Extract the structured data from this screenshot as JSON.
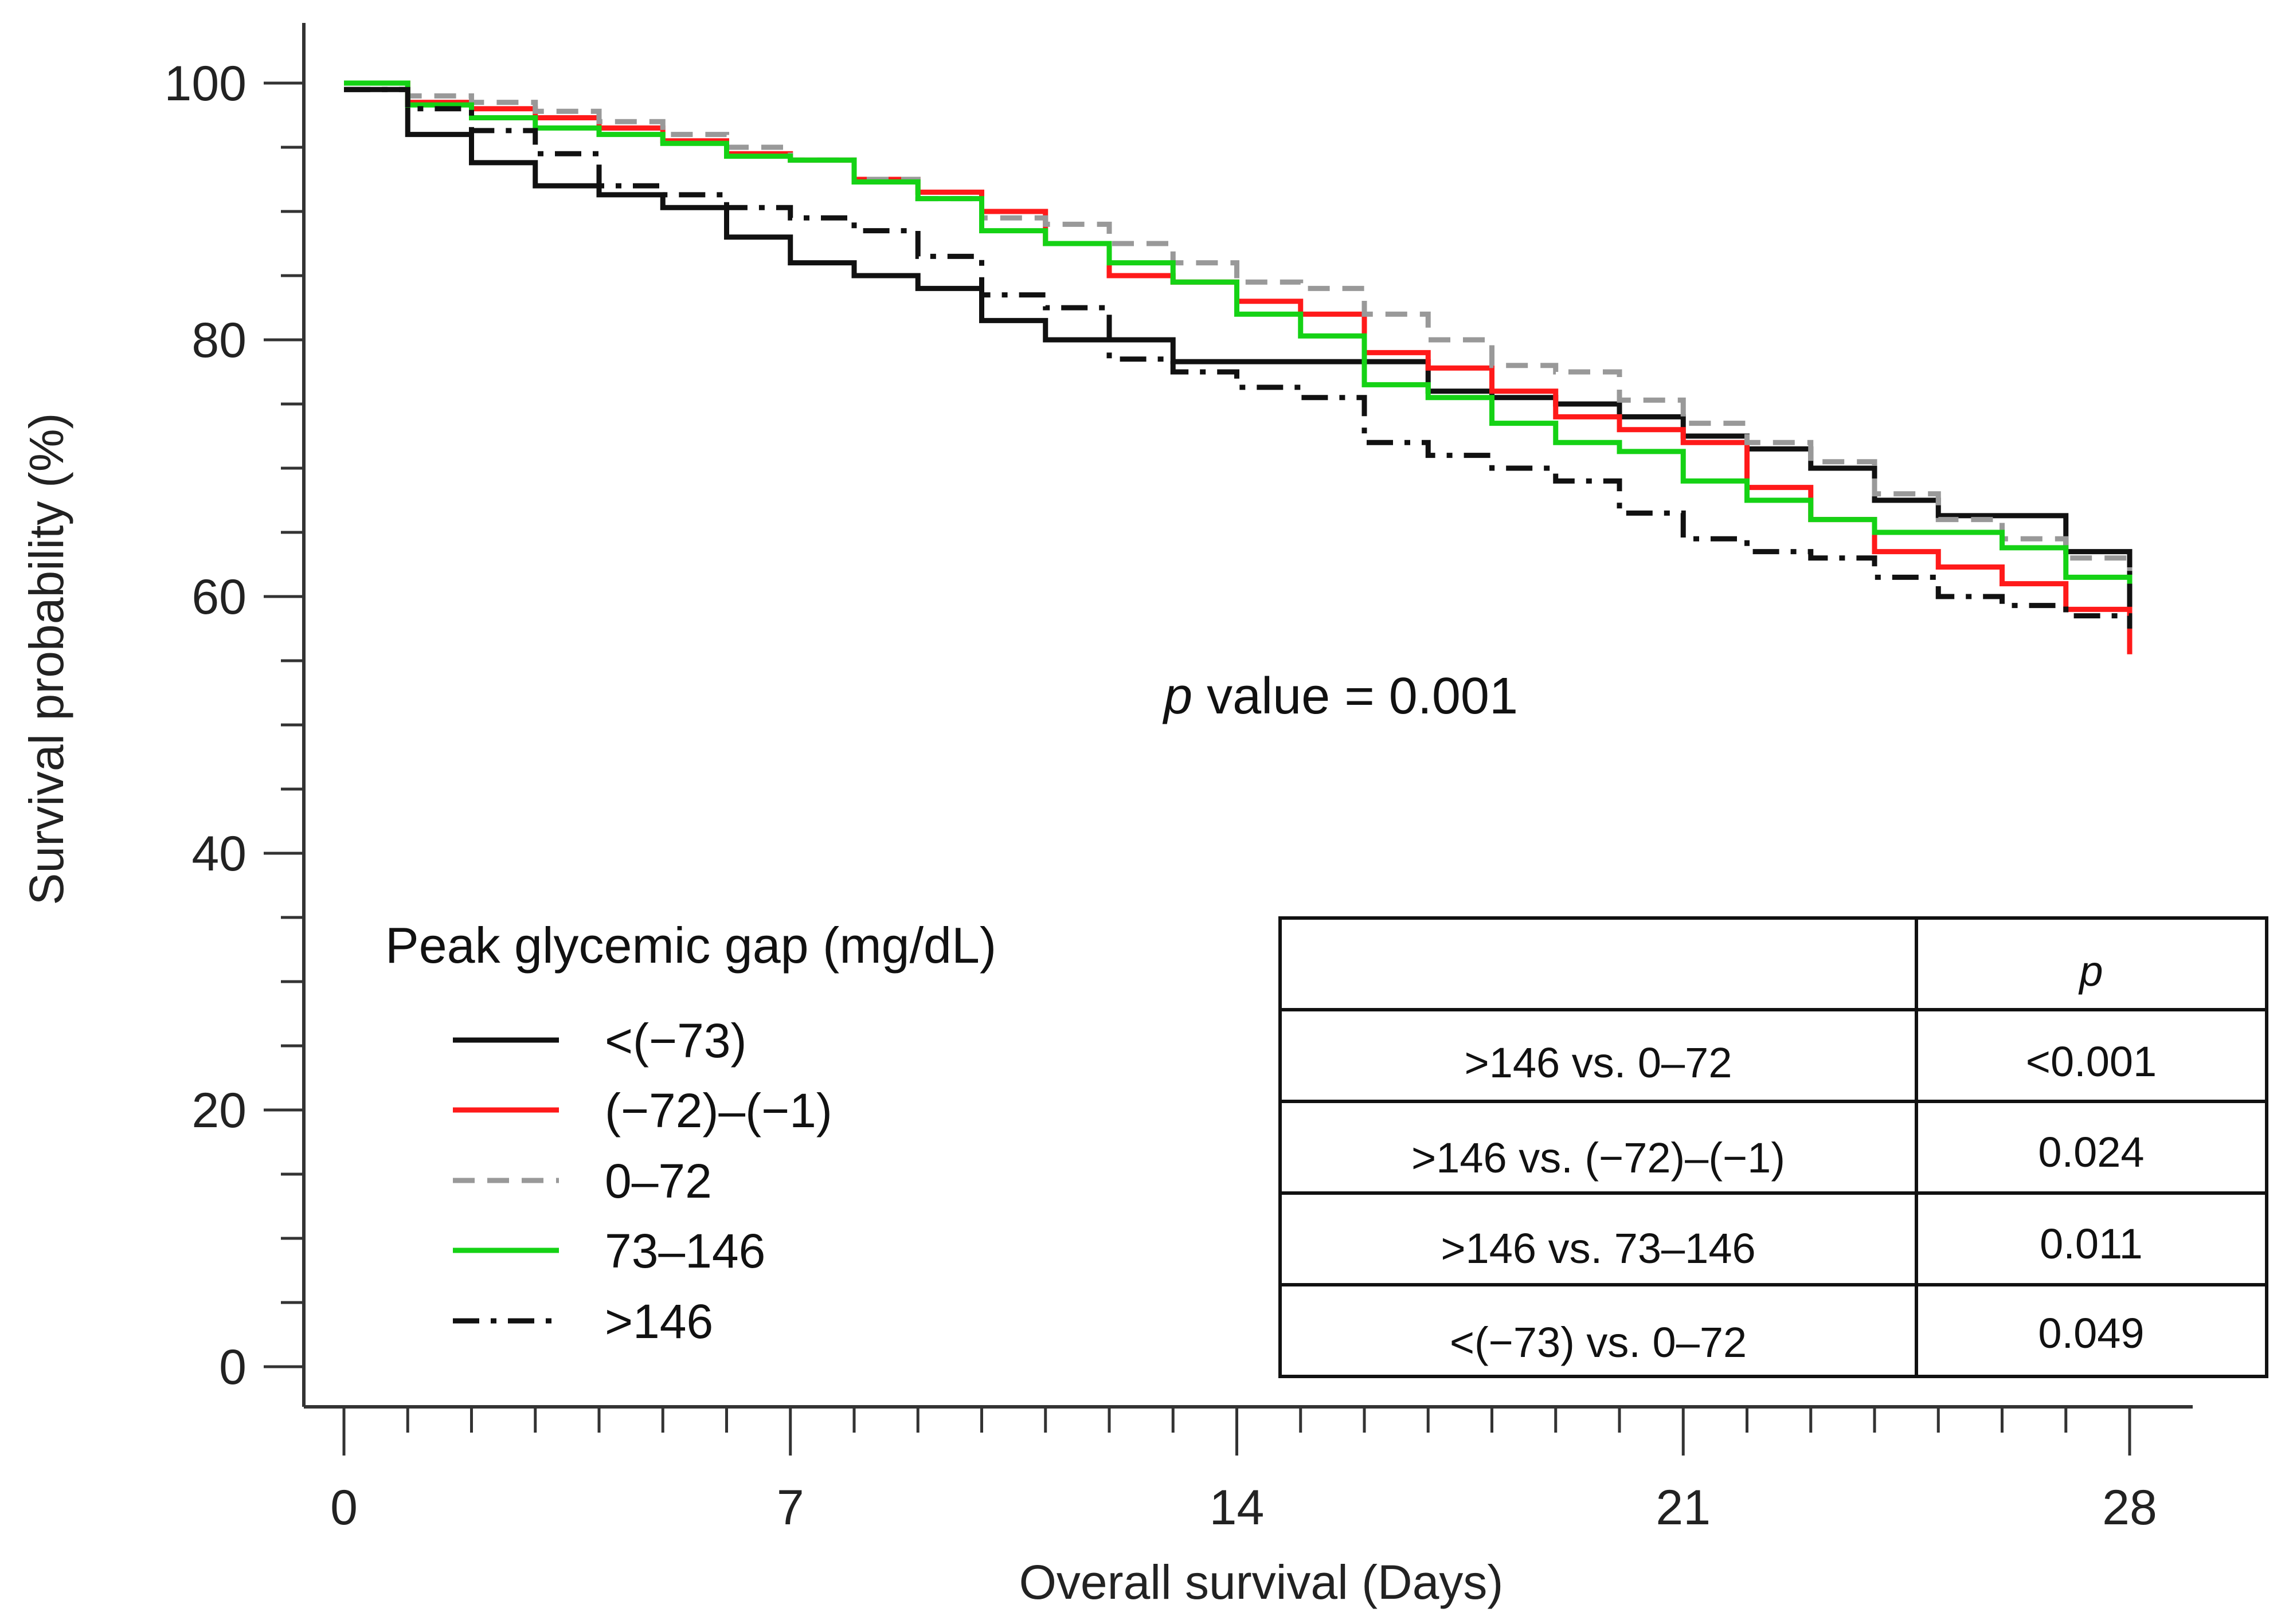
{
  "chart_data": {
    "type": "line",
    "subtype": "kaplan-meier",
    "xlabel": "Overall survival (Days)",
    "ylabel": "Survival probability (%)",
    "xlim": [
      0,
      28
    ],
    "ylim": [
      0,
      100
    ],
    "xticks": [
      0,
      7,
      14,
      21,
      28
    ],
    "yticks": [
      0,
      20,
      40,
      60,
      80,
      100
    ],
    "legend_title": "Peak glycemic gap (mg/dL)",
    "legend_position": "bottom-left",
    "annotation": {
      "prefix": "p",
      "text": " value = 0.001"
    },
    "series": [
      {
        "name": "<(−73)",
        "color": "#111111",
        "style": "solid",
        "x": [
          0,
          1,
          2,
          3,
          4,
          5,
          6,
          7,
          8,
          9,
          10,
          11,
          12,
          13,
          14,
          16,
          17,
          18,
          19,
          20,
          21,
          22,
          23,
          24,
          25,
          27,
          28
        ],
        "y": [
          99.5,
          96,
          93.8,
          92,
          91.3,
          90.3,
          88,
          86,
          85,
          84,
          81.5,
          80,
          80,
          78.3,
          78.3,
          78.3,
          76,
          75.5,
          75,
          74,
          72.5,
          71.5,
          70,
          67.5,
          66.3,
          63.5,
          57
        ]
      },
      {
        "name": "(−72)–(−1)",
        "color": "#ff1a1a",
        "style": "solid",
        "x": [
          0,
          1,
          2,
          3,
          4,
          5,
          6,
          7,
          8,
          9,
          10,
          11,
          12,
          13,
          14,
          15,
          16,
          17,
          18,
          19,
          20,
          21,
          22,
          23,
          24,
          25,
          26,
          27,
          28
        ],
        "y": [
          100,
          98.5,
          98,
          97.3,
          96.5,
          95.5,
          94.5,
          94,
          92.5,
          91.5,
          90,
          87.5,
          85,
          84.5,
          83,
          82,
          79,
          77.8,
          76,
          74,
          73,
          72,
          68.5,
          66,
          63.5,
          62.3,
          61,
          59,
          55.5
        ]
      },
      {
        "name": "0–72",
        "color": "#999999",
        "style": "dashed",
        "x": [
          0,
          1,
          2,
          3,
          4,
          5,
          6,
          7,
          8,
          9,
          10,
          11,
          12,
          13,
          14,
          15,
          16,
          17,
          18,
          19,
          20,
          21,
          22,
          23,
          24,
          25,
          26,
          27,
          28
        ],
        "y": [
          100,
          99,
          98.5,
          97.8,
          97,
          96,
          95,
          94,
          92.5,
          91,
          89.5,
          89,
          87.5,
          86,
          84.5,
          84,
          82,
          80,
          78,
          77.5,
          75.3,
          73.5,
          72,
          70.5,
          68,
          66,
          64.5,
          63,
          62
        ]
      },
      {
        "name": "73–146",
        "color": "#15d215",
        "style": "solid",
        "x": [
          0,
          1,
          2,
          3,
          4,
          5,
          6,
          7,
          8,
          9,
          10,
          11,
          12,
          13,
          14,
          15,
          16,
          17,
          18,
          19,
          20,
          21,
          22,
          23,
          24,
          25,
          26,
          27,
          28
        ],
        "y": [
          100,
          98.3,
          97.3,
          96.5,
          96,
          95.3,
          94.3,
          94,
          92.3,
          91,
          88.5,
          87.5,
          86,
          84.5,
          82,
          80.3,
          76.5,
          75.5,
          73.5,
          72,
          71.3,
          69,
          67.5,
          66,
          65,
          65,
          63.8,
          61.5,
          61
        ]
      },
      {
        "name": ">146",
        "color": "#111111",
        "style": "dashdot",
        "x": [
          0,
          1,
          2,
          3,
          4,
          5,
          6,
          7,
          8,
          9,
          10,
          11,
          12,
          13,
          14,
          15,
          16,
          17,
          18,
          19,
          20,
          21,
          22,
          23,
          24,
          25,
          26,
          27,
          28
        ],
        "y": [
          99.5,
          98,
          96.3,
          94.5,
          92,
          91.3,
          90.3,
          89.5,
          88.5,
          86.5,
          83.5,
          82.5,
          78.5,
          77.5,
          76.3,
          75.5,
          72,
          71,
          70,
          69,
          66.5,
          64.5,
          63.5,
          63,
          61.5,
          60,
          59.3,
          58.5,
          57.5
        ]
      }
    ],
    "table": {
      "header": [
        "",
        "p"
      ],
      "rows": [
        [
          ">146 vs. 0–72",
          "<0.001"
        ],
        [
          ">146 vs. (−72)–(−1)",
          "0.024"
        ],
        [
          ">146 vs. 73–146",
          "0.011"
        ],
        [
          "<(−73) vs. 0–72",
          "0.049"
        ]
      ]
    }
  }
}
